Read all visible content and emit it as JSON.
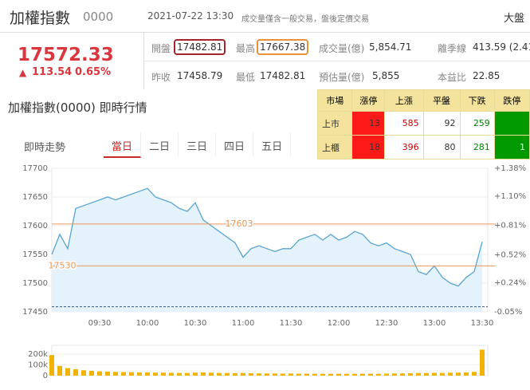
{
  "header": {
    "title": "加權指數",
    "code": "0000",
    "datetime": "2021-07-22 13:30",
    "note": "成交量僅含一般交易，盤後定價交易",
    "right": "大盤"
  },
  "quote": {
    "price": "17572.33",
    "change": "113.54",
    "change_pct": "0.65%"
  },
  "stats": {
    "rows": [
      [
        {
          "label": "開盤",
          "value": "17482.81"
        },
        {
          "label": "最高",
          "value": "17667.38"
        },
        {
          "label": "成交量(億)",
          "value": "5,854.71"
        },
        {
          "label": "離季線",
          "value": "413.59 (2.41"
        }
      ],
      [
        {
          "label": "昨收",
          "value": "17458.79"
        },
        {
          "label": "最低",
          "value": "17482.81"
        },
        {
          "label": "預估量(億)",
          "value": "5,855"
        },
        {
          "label": "本益比",
          "value": "22.85"
        }
      ]
    ]
  },
  "section_title": "加權指數(0000) 即時行情",
  "tabs": {
    "label": "即時走勢",
    "items": [
      "當日",
      "二日",
      "三日",
      "四日",
      "五日"
    ]
  },
  "market_table": {
    "headers": [
      "市場",
      "漲停",
      "上漲",
      "平盤",
      "下跌",
      "跌停"
    ],
    "rows": [
      [
        "上市",
        "13",
        "585",
        "92",
        "259",
        null
      ],
      [
        "上櫃",
        "18",
        "396",
        "80",
        "281",
        "1"
      ]
    ]
  },
  "chart_data": [
    {
      "type": "line",
      "x": [
        "09:00",
        "09:05",
        "09:10",
        "09:15",
        "09:20",
        "09:25",
        "09:30",
        "09:35",
        "09:40",
        "09:45",
        "09:50",
        "09:55",
        "10:00",
        "10:05",
        "10:10",
        "10:15",
        "10:20",
        "10:25",
        "10:30",
        "10:35",
        "10:40",
        "10:45",
        "10:50",
        "10:55",
        "11:00",
        "11:05",
        "11:10",
        "11:15",
        "11:20",
        "11:25",
        "11:30",
        "11:35",
        "11:40",
        "11:45",
        "11:50",
        "11:55",
        "12:00",
        "12:05",
        "12:10",
        "12:15",
        "12:20",
        "12:25",
        "12:30",
        "12:35",
        "12:40",
        "12:45",
        "12:50",
        "12:55",
        "13:00",
        "13:05",
        "13:10",
        "13:15",
        "13:20",
        "13:25",
        "13:30"
      ],
      "series": [
        {
          "color": "#5aa5cf",
          "values": [
            17550,
            17585,
            17560,
            17630,
            17635,
            17640,
            17645,
            17650,
            17645,
            17650,
            17655,
            17660,
            17665,
            17650,
            17645,
            17640,
            17630,
            17625,
            17640,
            17610,
            17600,
            17590,
            17580,
            17570,
            17545,
            17560,
            17565,
            17560,
            17555,
            17560,
            17560,
            17575,
            17580,
            17585,
            17575,
            17585,
            17575,
            17580,
            17590,
            17585,
            17570,
            17565,
            17570,
            17560,
            17555,
            17550,
            17520,
            17515,
            17530,
            17510,
            17500,
            17495,
            17510,
            17520,
            17572
          ]
        }
      ],
      "ylim": [
        17450,
        17700
      ],
      "yticks": [
        17450,
        17500,
        17550,
        17600,
        17650,
        17700
      ],
      "y2lim": [
        -0.05,
        1.38
      ],
      "y2ticks": [
        {
          "value": -0.05,
          "label": "-0.05%"
        },
        {
          "value": 0.24,
          "label": "+0.24%"
        },
        {
          "value": 0.52,
          "label": "+0.52%"
        },
        {
          "value": 0.81,
          "label": "+0.81%"
        },
        {
          "value": 1.1,
          "label": "+1.10%"
        },
        {
          "value": 1.38,
          "label": "+1.38%"
        }
      ],
      "xticks": [
        "09:30",
        "10:00",
        "10:30",
        "11:00",
        "11:30",
        "12:00",
        "12:30",
        "13:00",
        "13:30"
      ],
      "reference_lines": [
        17603,
        17530
      ],
      "reference_color": "#e8975a",
      "baseline": 17458.79,
      "grid": true
    },
    {
      "type": "bar",
      "categories": [
        "09:00",
        "09:05",
        "09:10",
        "09:15",
        "09:20",
        "09:25",
        "09:30",
        "09:35",
        "09:40",
        "09:45",
        "09:50",
        "09:55",
        "10:00",
        "10:05",
        "10:10",
        "10:15",
        "10:20",
        "10:25",
        "10:30",
        "10:35",
        "10:40",
        "10:45",
        "10:50",
        "10:55",
        "11:00",
        "11:05",
        "11:10",
        "11:15",
        "11:20",
        "11:25",
        "11:30",
        "11:35",
        "11:40",
        "11:45",
        "11:50",
        "11:55",
        "12:00",
        "12:05",
        "12:10",
        "12:15",
        "12:20",
        "12:25",
        "12:30",
        "12:35",
        "12:40",
        "12:45",
        "12:50",
        "12:55",
        "13:00",
        "13:05",
        "13:10",
        "13:15",
        "13:20",
        "13:25",
        "13:30"
      ],
      "values": [
        190000,
        90000,
        70000,
        60000,
        50000,
        45000,
        40000,
        38000,
        35000,
        33000,
        32000,
        30000,
        30000,
        28000,
        27000,
        26000,
        25000,
        25000,
        28000,
        30000,
        27000,
        25000,
        24000,
        23000,
        25000,
        22000,
        21000,
        20000,
        20000,
        19000,
        20000,
        19000,
        18000,
        18000,
        17000,
        17000,
        18000,
        17000,
        17000,
        18000,
        18000,
        17000,
        19000,
        20000,
        21000,
        22000,
        25000,
        24000,
        26000,
        25000,
        27000,
        28000,
        30000,
        35000,
        240000
      ],
      "color": "#f0b400",
      "ylim": [
        0,
        280000
      ],
      "yticks": [
        0,
        {
          "value": 100000,
          "label": "100k"
        },
        {
          "value": 200000,
          "label": "200k"
        }
      ],
      "grid": true
    }
  ]
}
